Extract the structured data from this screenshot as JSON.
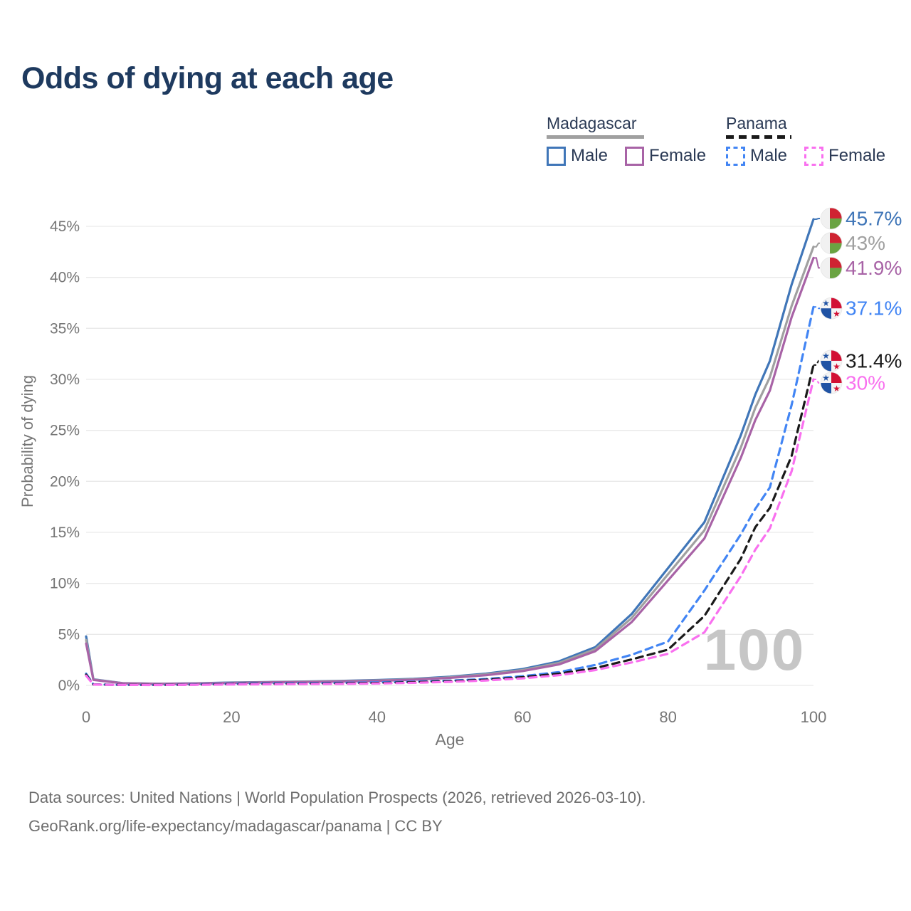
{
  "title": "Odds of dying at each age",
  "legend": {
    "groups": [
      {
        "title": "Madagascar",
        "line_style": "solid",
        "underline_color": "#a0a0a0",
        "items": [
          {
            "label": "Male",
            "color": "#4076b8",
            "dashed": false
          },
          {
            "label": "Female",
            "color": "#a863a6",
            "dashed": false
          }
        ]
      },
      {
        "title": "Panama",
        "line_style": "dashed",
        "underline_color": "#1a1a1a",
        "items": [
          {
            "label": "Male",
            "color": "#4285f4",
            "dashed": true
          },
          {
            "label": "Female",
            "color": "#f970ef",
            "dashed": true
          }
        ]
      }
    ]
  },
  "chart_data": {
    "type": "line",
    "title": "Odds of dying at each age",
    "xlabel": "Age",
    "ylabel": "Probability of dying",
    "xlim": [
      0,
      100
    ],
    "ylim": [
      0,
      46
    ],
    "grid": "horizontal",
    "watermark": "100",
    "x_tick_values": [
      0,
      20,
      40,
      60,
      80,
      100
    ],
    "x_tick_labels": [
      "0",
      "20",
      "40",
      "60",
      "80",
      "100"
    ],
    "y_tick_values": [
      0,
      5,
      10,
      15,
      20,
      25,
      30,
      35,
      40,
      45
    ],
    "y_tick_labels": [
      "0%",
      "5%",
      "10%",
      "15%",
      "20%",
      "25%",
      "30%",
      "35%",
      "40%",
      "45%"
    ],
    "x": [
      0,
      1,
      5,
      10,
      15,
      20,
      25,
      30,
      35,
      40,
      45,
      50,
      55,
      60,
      65,
      70,
      75,
      80,
      85,
      90,
      92,
      94,
      97,
      100
    ],
    "series": [
      {
        "name": "Madagascar Male",
        "country": "Madagascar",
        "sex": "Male",
        "color": "#4076b8",
        "dash": "solid",
        "flag": "madagascar",
        "end_label": "45.7%",
        "values": [
          4.8,
          0.6,
          0.22,
          0.16,
          0.2,
          0.28,
          0.33,
          0.38,
          0.44,
          0.52,
          0.64,
          0.85,
          1.15,
          1.6,
          2.35,
          3.75,
          7.0,
          11.5,
          16.0,
          24.5,
          28.5,
          31.8,
          39.3,
          45.7
        ]
      },
      {
        "name": "Madagascar",
        "country": "Madagascar",
        "sex": "Both",
        "color": "#a0a0a0",
        "dash": "solid",
        "flag": "madagascar",
        "end_label": "43%",
        "values": [
          4.45,
          0.57,
          0.21,
          0.15,
          0.18,
          0.26,
          0.31,
          0.36,
          0.41,
          0.48,
          0.59,
          0.79,
          1.08,
          1.5,
          2.2,
          3.55,
          6.6,
          10.9,
          15.2,
          23.3,
          27.2,
          30.2,
          37.2,
          43.0
        ]
      },
      {
        "name": "Madagascar Female",
        "country": "Madagascar",
        "sex": "Female",
        "color": "#a863a6",
        "dash": "solid",
        "flag": "madagascar",
        "end_label": "41.9%",
        "values": [
          4.1,
          0.54,
          0.2,
          0.14,
          0.17,
          0.24,
          0.29,
          0.33,
          0.38,
          0.45,
          0.55,
          0.73,
          1.0,
          1.4,
          2.05,
          3.35,
          6.2,
          10.3,
          14.4,
          22.3,
          26.0,
          28.9,
          36.1,
          41.9
        ]
      },
      {
        "name": "Panama Male",
        "country": "Panama",
        "sex": "Male",
        "color": "#4285f4",
        "dash": "dashed",
        "flag": "panama",
        "end_label": "37.1%",
        "values": [
          1.15,
          0.1,
          0.05,
          0.045,
          0.09,
          0.16,
          0.2,
          0.22,
          0.25,
          0.29,
          0.36,
          0.47,
          0.63,
          0.9,
          1.3,
          2.0,
          3.0,
          4.3,
          9.3,
          14.8,
          17.3,
          19.4,
          27.5,
          37.1
        ]
      },
      {
        "name": "Panama",
        "country": "Panama",
        "sex": "Both",
        "color": "#1a1a1a",
        "dash": "dashed",
        "flag": "panama",
        "end_label": "31.4%",
        "values": [
          1.05,
          0.09,
          0.045,
          0.04,
          0.07,
          0.12,
          0.15,
          0.17,
          0.2,
          0.24,
          0.31,
          0.41,
          0.56,
          0.8,
          1.15,
          1.7,
          2.55,
          3.5,
          6.8,
          12.4,
          15.5,
          17.4,
          22.5,
          31.4
        ]
      },
      {
        "name": "Panama Female",
        "country": "Panama",
        "sex": "Female",
        "color": "#f970ef",
        "dash": "dashed",
        "flag": "panama",
        "end_label": "30%",
        "values": [
          0.95,
          0.08,
          0.04,
          0.035,
          0.055,
          0.09,
          0.11,
          0.13,
          0.15,
          0.19,
          0.25,
          0.34,
          0.48,
          0.69,
          1.0,
          1.5,
          2.25,
          3.1,
          5.2,
          10.7,
          13.3,
          15.4,
          21.0,
          30.0
        ]
      }
    ],
    "colors": {
      "title": "#1e3a5f",
      "axis_text": "#757575",
      "grid": "#e9e9e9",
      "watermark": "#c6c6c6",
      "flag_madagascar": {
        "white": "#f1f1f1",
        "red": "#cf2332",
        "green": "#6aa342"
      },
      "flag_panama": {
        "white": "#f4f4f4",
        "red": "#d21034",
        "blue": "#2053a4"
      }
    }
  },
  "footer": {
    "line1": "Data sources: United Nations | World Population Prospects (2026, retrieved 2026-03-10).",
    "line2": "GeoRank.org/life-expectancy/madagascar/panama | CC BY"
  }
}
